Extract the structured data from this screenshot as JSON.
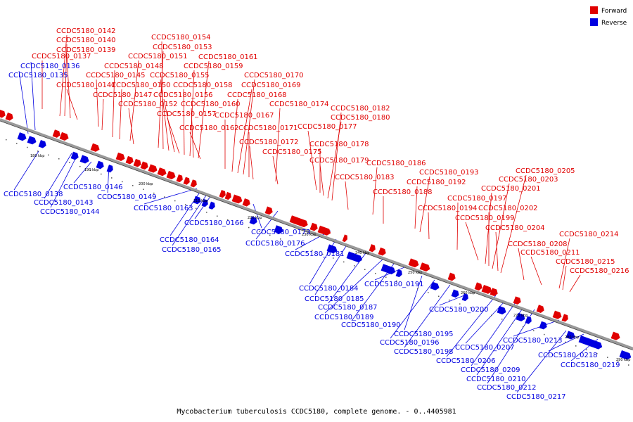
{
  "caption": "Mycobacterium tuberculosis CCDC5180, complete genome. - 0..4405981",
  "legend": [
    {
      "label": "Forward",
      "color": "#e00000"
    },
    {
      "label": "Reverse",
      "color": "#0000e0"
    }
  ],
  "colors": {
    "forward": "#e00000",
    "reverse": "#0000e0",
    "backbone": "#808080"
  },
  "kbp_ticks": [
    "180 kbp",
    "190 kbp",
    "200 kbp",
    "210 kbp",
    "220 kbp",
    "230 kbp",
    "240 kbp",
    "250 kbp",
    "260 kbp",
    "270 kbp",
    "280 kbp",
    "290 kbp"
  ],
  "forward_labels": [
    "CCDC5180_0142",
    "CCDC5180_0140",
    "CCDC5180_0139",
    "CCDC5180_0137",
    "CCDC5180_0141",
    "CCDC5180_0145",
    "CCDC5180_0147",
    "CCDC5180_0148",
    "CCDC5180_0150",
    "CCDC5180_0151",
    "CCDC5180_0152",
    "CCDC5180_0153",
    "CCDC5180_0154",
    "CCDC5180_0155",
    "CCDC5180_0156",
    "CCDC5180_0157",
    "CCDC5180_0158",
    "CCDC5180_0159",
    "CCDC5180_0160",
    "CCDC5180_0161",
    "CCDC5180_0162",
    "CCDC5180_0167",
    "CCDC5180_0168",
    "CCDC5180_0169",
    "CCDC5180_0170",
    "CCDC5180_0171",
    "CCDC5180_0172",
    "CCDC5180_0174",
    "CCDC5180_0175",
    "CCDC5180_0177",
    "CCDC5180_0178",
    "CCDC5180_0179",
    "CCDC5180_0180",
    "CCDC5180_0182",
    "CCDC5180_0183",
    "CCDC5180_0186",
    "CCDC5180_0188",
    "CCDC5180_0192",
    "CCDC5180_0193",
    "CCDC5180_0194",
    "CCDC5180_0197",
    "CCDC5180_0199",
    "CCDC5180_0201",
    "CCDC5180_0202",
    "CCDC5180_0203",
    "CCDC5180_0204",
    "CCDC5180_0205",
    "CCDC5180_0208",
    "CCDC5180_0211",
    "CCDC5180_0214",
    "CCDC5180_0215",
    "CCDC5180_0216"
  ],
  "reverse_labels": [
    "CCDC5180_0136",
    "CCDC5180_0135",
    "CCDC5180_0138",
    "CCDC5180_0143",
    "CCDC5180_0144",
    "CCDC5180_0146",
    "CCDC5180_0149",
    "CCDC5180_0163",
    "CCDC5180_0164",
    "CCDC5180_0165",
    "CCDC5180_0166",
    "CCDC5180_0173",
    "CCDC5180_0176",
    "CCDC5180_0181",
    "CCDC5180_0184",
    "CCDC5180_0185",
    "CCDC5180_0187",
    "CCDC5180_0189",
    "CCDC5180_0190",
    "CCDC5180_0191",
    "CCDC5180_0195",
    "CCDC5180_0196",
    "CCDC5180_0198",
    "CCDC5180_0200",
    "CCDC5180_0206",
    "CCDC5180_0207",
    "CCDC5180_0209",
    "CCDC5180_0210",
    "CCDC5180_0212",
    "CCDC5180_0213",
    "CCDC5180_0217",
    "CCDC5180_0218",
    "CCDC5180_0219"
  ]
}
